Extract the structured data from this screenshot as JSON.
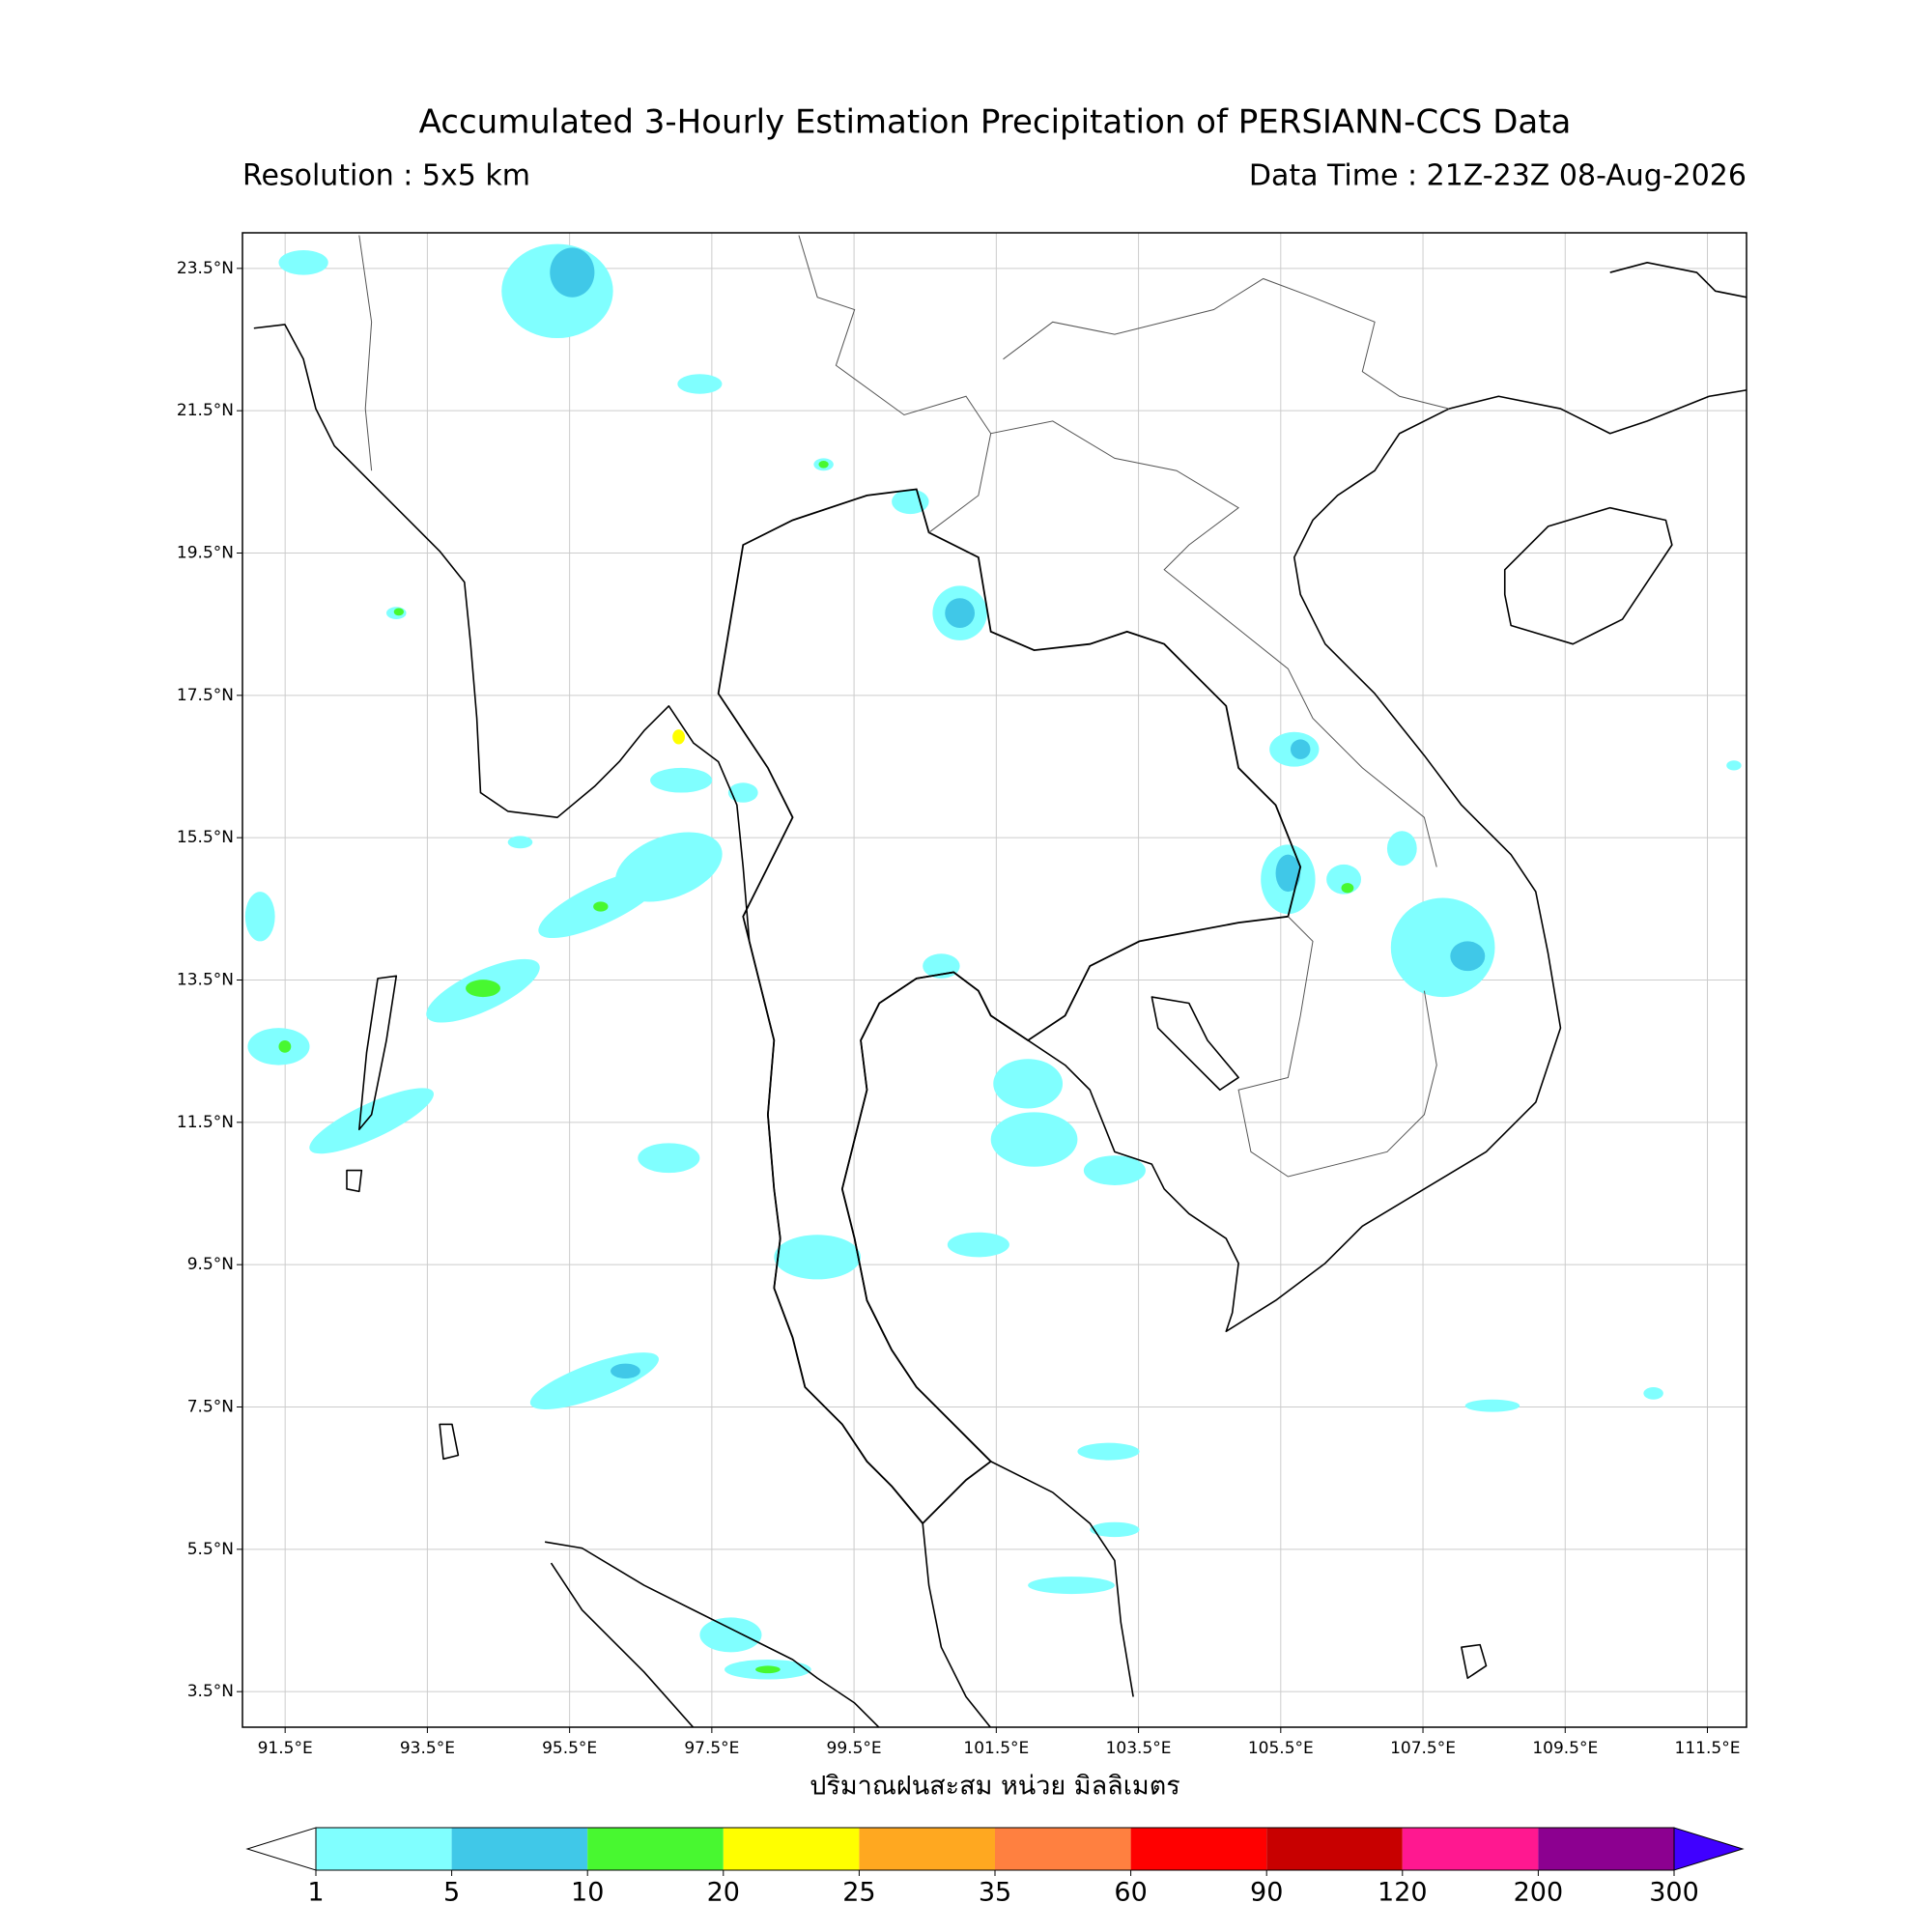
{
  "title": "Accumulated 3-Hourly Estimation Precipitation of PERSIANN-CCS Data",
  "resolution": "Resolution : 5x5 km",
  "data_time": "Data Time : 21Z-23Z 08-Aug-2026",
  "map": {
    "xlim": [
      90.9,
      112.05
    ],
    "ylim": [
      3,
      24
    ],
    "grid": true,
    "xticks": [
      {
        "value": 91.5,
        "label": "91.5°E"
      },
      {
        "value": 93.5,
        "label": "93.5°E"
      },
      {
        "value": 95.5,
        "label": "95.5°E"
      },
      {
        "value": 97.5,
        "label": "97.5°E"
      },
      {
        "value": 99.5,
        "label": "99.5°E"
      },
      {
        "value": 101.5,
        "label": "101.5°E"
      },
      {
        "value": 103.5,
        "label": "103.5°E"
      },
      {
        "value": 105.5,
        "label": "105.5°E"
      },
      {
        "value": 107.5,
        "label": "107.5°E"
      },
      {
        "value": 109.5,
        "label": "109.5°E"
      },
      {
        "value": 111.5,
        "label": "111.5°E"
      }
    ],
    "yticks": [
      {
        "value": 3.5,
        "label": "3.5°N"
      },
      {
        "value": 5.5,
        "label": "5.5°N"
      },
      {
        "value": 7.5,
        "label": "7.5°N"
      },
      {
        "value": 9.5,
        "label": "9.5°N"
      },
      {
        "value": 11.5,
        "label": "11.5°N"
      },
      {
        "value": 13.5,
        "label": "13.5°N"
      },
      {
        "value": 15.5,
        "label": "15.5°N"
      },
      {
        "value": 17.5,
        "label": "17.5°N"
      },
      {
        "value": 19.5,
        "label": "19.5°N"
      },
      {
        "value": 21.5,
        "label": "21.5°N"
      },
      {
        "value": 23.5,
        "label": "23.5°N"
      }
    ]
  },
  "colorbar": {
    "label": "ปริมาณฝนสะสม หน่วย มิลลิเมตร",
    "levels": [
      1,
      5,
      10,
      20,
      25,
      35,
      60,
      90,
      120,
      200,
      300
    ],
    "colors": [
      "#80ffff",
      "#40c8e8",
      "#48f830",
      "#ffff00",
      "#ffa820",
      "#ff8040",
      "#ff0000",
      "#c80000",
      "#ff1890",
      "#8c0090"
    ],
    "under_color": "#ffffff",
    "over_color": "#4000ff"
  }
}
